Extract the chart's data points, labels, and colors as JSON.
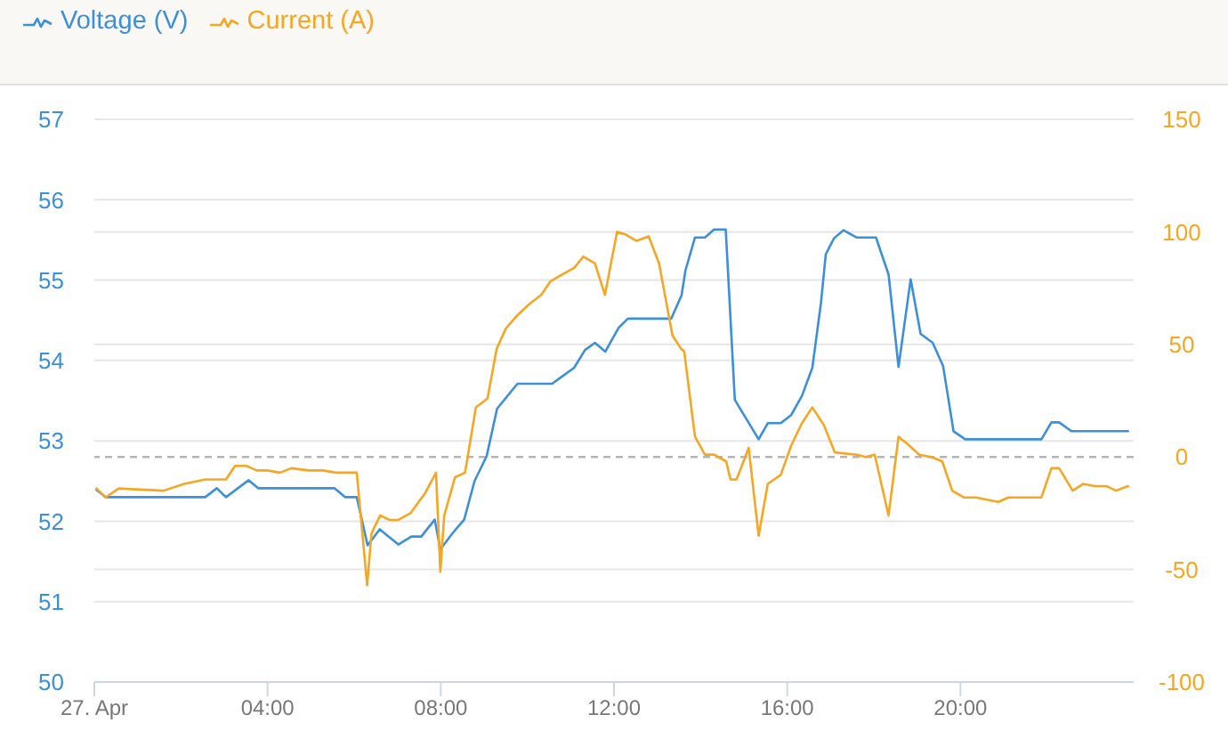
{
  "chart_data": {
    "type": "line",
    "legend": "top left",
    "grid": "y",
    "series": [
      {
        "name": "Voltage (V)",
        "color": "#3d8fd8",
        "x": [
          0.05,
          0.26,
          2.56,
          2.83,
          3.04,
          3.56,
          3.79,
          5.55,
          5.79,
          6.06,
          6.31,
          6.59,
          7.02,
          7.32,
          7.55,
          7.86,
          7.99,
          8.27,
          8.54,
          8.78,
          9.06,
          9.3,
          9.77,
          10.57,
          10.8,
          11.08,
          11.33,
          11.56,
          11.8,
          12.11,
          12.32,
          13.32,
          13.56,
          13.65,
          13.87,
          14.1,
          14.31,
          14.58,
          14.79,
          15.34,
          15.55,
          15.85,
          16.09,
          16.34,
          16.58,
          16.78,
          16.89,
          17.08,
          17.3,
          17.6,
          18.05,
          18.34,
          18.57,
          18.85,
          19.08,
          19.36,
          19.6,
          19.84,
          20.11,
          21.87,
          22.1,
          22.28,
          22.56,
          23.87
        ],
        "values": [
          52.39,
          52.3,
          52.3,
          52.41,
          52.3,
          52.51,
          52.41,
          52.41,
          52.3,
          52.3,
          51.7,
          51.9,
          51.71,
          51.81,
          51.81,
          52.02,
          51.65,
          51.85,
          52.02,
          52.5,
          52.81,
          53.4,
          53.71,
          53.71,
          53.8,
          53.91,
          54.13,
          54.22,
          54.11,
          54.41,
          54.52,
          54.52,
          54.81,
          55.12,
          55.53,
          55.53,
          55.63,
          55.63,
          53.51,
          53.02,
          53.22,
          53.22,
          53.32,
          53.56,
          53.91,
          54.72,
          55.32,
          55.52,
          55.62,
          55.53,
          55.53,
          55.07,
          53.92,
          55.01,
          54.33,
          54.22,
          53.93,
          53.12,
          53.02,
          53.02,
          53.23,
          53.23,
          53.12,
          53.12
        ]
      },
      {
        "name": "Current (A)",
        "color": "#f5a623",
        "axis": "y2",
        "x": [
          0.05,
          0.26,
          0.56,
          1.6,
          2.07,
          2.56,
          3.04,
          3.25,
          3.52,
          3.75,
          4.0,
          4.29,
          4.55,
          4.95,
          5.28,
          5.58,
          6.06,
          6.3,
          6.4,
          6.6,
          6.82,
          7.02,
          7.3,
          7.64,
          7.89,
          7.99,
          8.08,
          8.33,
          8.56,
          8.81,
          9.08,
          9.29,
          9.5,
          9.77,
          10.05,
          10.32,
          10.53,
          10.8,
          11.08,
          11.29,
          11.56,
          11.79,
          12.07,
          12.25,
          12.52,
          12.8,
          13.04,
          13.35,
          13.55,
          13.62,
          13.87,
          14.1,
          14.31,
          14.59,
          14.69,
          14.83,
          15.11,
          15.34,
          15.55,
          15.85,
          16.09,
          16.34,
          16.58,
          16.85,
          17.1,
          17.61,
          17.81,
          18.02,
          18.34,
          18.57,
          18.82,
          19.05,
          19.33,
          19.58,
          19.81,
          20.08,
          20.36,
          20.87,
          21.11,
          21.87,
          22.1,
          22.28,
          22.59,
          22.83,
          23.11,
          23.38,
          23.59,
          23.87
        ],
        "values": [
          -14,
          -18,
          -14,
          -15,
          -12,
          -10,
          -10,
          -4,
          -4,
          -6,
          -6,
          -7,
          -5,
          -6,
          -6,
          -7,
          -7,
          -57,
          -34,
          -26,
          -28,
          -28,
          -25,
          -16,
          -7,
          -51,
          -26,
          -9,
          -7,
          22,
          26,
          48,
          57,
          63,
          68,
          72,
          78,
          81,
          84,
          89,
          86,
          72,
          100,
          99,
          96,
          98,
          86,
          54,
          48,
          47,
          9,
          1,
          1,
          -2,
          -10,
          -10,
          4,
          -35,
          -12,
          -8,
          5,
          15,
          22,
          14,
          2,
          1,
          0,
          1,
          -26,
          9,
          5,
          1,
          0,
          -2,
          -15,
          -18,
          -18,
          -20,
          -18,
          -18,
          -5,
          -5,
          -15,
          -12,
          -13,
          -13,
          -15,
          -13
        ]
      }
    ],
    "xlim": [
      0,
      24
    ],
    "xticks": [
      {
        "value": 0,
        "label": "27. Apr"
      },
      {
        "value": 4,
        "label": "04:00"
      },
      {
        "value": 8,
        "label": "08:00"
      },
      {
        "value": 12,
        "label": "12:00"
      },
      {
        "value": 16,
        "label": "16:00"
      },
      {
        "value": 20,
        "label": "20:00"
      }
    ],
    "ylim": [
      50,
      57
    ],
    "yticks": [
      50,
      51,
      52,
      53,
      54,
      55,
      56,
      57
    ],
    "y2lim": [
      -100,
      150
    ],
    "y2ticks": [
      -100,
      -50,
      0,
      50,
      100,
      150
    ],
    "ref_lines": [
      {
        "axis": "y2",
        "value": 0,
        "line_style": "dashed",
        "color": "#b5b5b5"
      }
    ]
  }
}
